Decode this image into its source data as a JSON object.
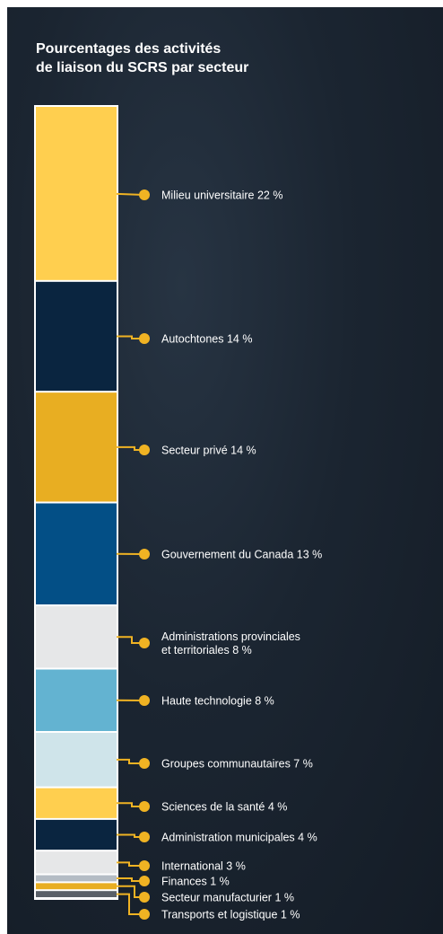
{
  "title": {
    "line1": "Pourcentages des activités",
    "line2": "de liaison du SCRS par secteur"
  },
  "chart_data": {
    "type": "bar",
    "orientation": "stacked-vertical",
    "title": "Pourcentages des activités de liaison du SCRS par secteur",
    "unit": "%",
    "categories": [
      "Milieu universitaire",
      "Autochtones",
      "Secteur privé",
      "Gouvernement du Canada",
      "Administrations provinciales et territoriales",
      "Haute technologie",
      "Groupes communautaires",
      "Sciences de la santé",
      "Administration municipales",
      "International",
      "Finances",
      "Secteur manufacturier",
      "Transports et logistique"
    ],
    "values": [
      22,
      14,
      14,
      13,
      8,
      8,
      7,
      4,
      4,
      3,
      1,
      1,
      1
    ],
    "segments": [
      {
        "label_lines": [
          "Milieu universitaire 22 %"
        ],
        "value": 22,
        "color": "#ffcf4f"
      },
      {
        "label_lines": [
          "Autochtones 14 %"
        ],
        "value": 14,
        "color": "#0a2540"
      },
      {
        "label_lines": [
          "Secteur privé 14 %"
        ],
        "value": 14,
        "color": "#e8ae22"
      },
      {
        "label_lines": [
          "Gouvernement du Canada 13 %"
        ],
        "value": 13,
        "color": "#034f86"
      },
      {
        "label_lines": [
          "Administrations provinciales",
          "et territoriales 8 %"
        ],
        "value": 8,
        "color": "#e6e7e8"
      },
      {
        "label_lines": [
          "Haute technologie 8 %"
        ],
        "value": 8,
        "color": "#63b3d1"
      },
      {
        "label_lines": [
          "Groupes communautaires 7 %"
        ],
        "value": 7,
        "color": "#cfe4ea"
      },
      {
        "label_lines": [
          "Sciences de la santé 4 %"
        ],
        "value": 4,
        "color": "#ffcf4f"
      },
      {
        "label_lines": [
          "Administration municipales 4 %"
        ],
        "value": 4,
        "color": "#0a2540"
      },
      {
        "label_lines": [
          "International 3 %"
        ],
        "value": 3,
        "color": "#e6e7e8"
      },
      {
        "label_lines": [
          "Finances 1 %"
        ],
        "value": 1,
        "color": "#b4bcc4"
      },
      {
        "label_lines": [
          "Secteur manufacturier 1 %"
        ],
        "value": 1,
        "color": "#e8ae22"
      },
      {
        "label_lines": [
          "Transports et logistique 1 %"
        ],
        "value": 1,
        "color": "#5a6068"
      }
    ],
    "connector_color": "#f0b323",
    "border_color": "#ffffff"
  }
}
